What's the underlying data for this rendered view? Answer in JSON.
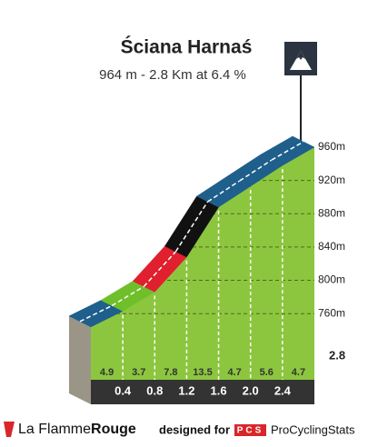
{
  "chart_data": {
    "type": "climb-profile",
    "title": "Ściana Harnaś",
    "subtitle": "964 m - 2.8 Km at 6.4 %",
    "x": [
      0,
      0.4,
      0.8,
      1.2,
      1.6,
      2.0,
      2.4,
      2.8
    ],
    "elevations": [
      744,
      763,
      786,
      828,
      888,
      913,
      938,
      960
    ],
    "gradients": [
      4.9,
      3.7,
      7.8,
      13.5,
      4.7,
      5.6,
      4.7
    ],
    "segment_colors": [
      "#1f5f8b",
      "#6fbf2a",
      "#e0202e",
      "#111111",
      "#1f5f8b",
      "#1f5f8b",
      "#1f5f8b"
    ],
    "xlim": [
      0,
      2.8
    ],
    "xticks": [
      0.4,
      0.8,
      1.2,
      1.6,
      {
        "value": 2.0,
        "label": "2.0"
      },
      2.4,
      2.8
    ],
    "ylim": [
      722,
      960
    ],
    "yticks": [
      {
        "value": 760,
        "label": "760m"
      },
      {
        "value": 800,
        "label": "800m"
      },
      {
        "value": 840,
        "label": "840m"
      },
      {
        "value": 880,
        "label": "880m"
      },
      {
        "value": 920,
        "label": "920m"
      },
      {
        "value": 960,
        "label": "960m"
      }
    ],
    "grid": true
  },
  "footer": {
    "brand_a": "La Flamme",
    "brand_b": "Rouge",
    "designed_for": "designed for",
    "pcs": "PCS",
    "pcs_name": "ProCyclingStats"
  }
}
